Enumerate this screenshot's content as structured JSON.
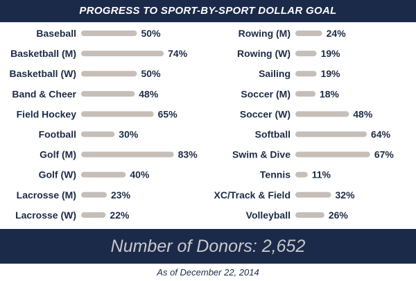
{
  "header": {
    "title": "PROGRESS TO SPORT-BY-SPORT DOLLAR GOAL"
  },
  "chart_data": {
    "type": "bar",
    "orientation": "horizontal",
    "units": "%",
    "xlim": [
      0,
      100
    ],
    "grid": false,
    "legend": "none",
    "bar_color": "#c5beb9",
    "label_color": "#1d2b45",
    "columns": [
      {
        "categories": [
          "Baseball",
          "Basketball (M)",
          "Basketball (W)",
          "Band & Cheer",
          "Field Hockey",
          "Football",
          "Golf (M)",
          "Golf (W)",
          "Lacrosse (M)",
          "Lacrosse (W)"
        ],
        "values": [
          50,
          74,
          50,
          48,
          65,
          30,
          83,
          40,
          23,
          22
        ]
      },
      {
        "categories": [
          "Rowing (M)",
          "Rowing (W)",
          "Sailing",
          "Soccer (M)",
          "Soccer (W)",
          "Softball",
          "Swim & Dive",
          "Tennis",
          "XC/Track & Field",
          "Volleyball"
        ],
        "values": [
          24,
          19,
          19,
          18,
          48,
          64,
          67,
          11,
          32,
          26
        ]
      }
    ]
  },
  "footer": {
    "donors_text": "Number of Donors: 2,652",
    "as_of": "As of December 22, 2014"
  },
  "colors": {
    "navy": "#1c2a4a",
    "bar": "#c5beb9"
  }
}
